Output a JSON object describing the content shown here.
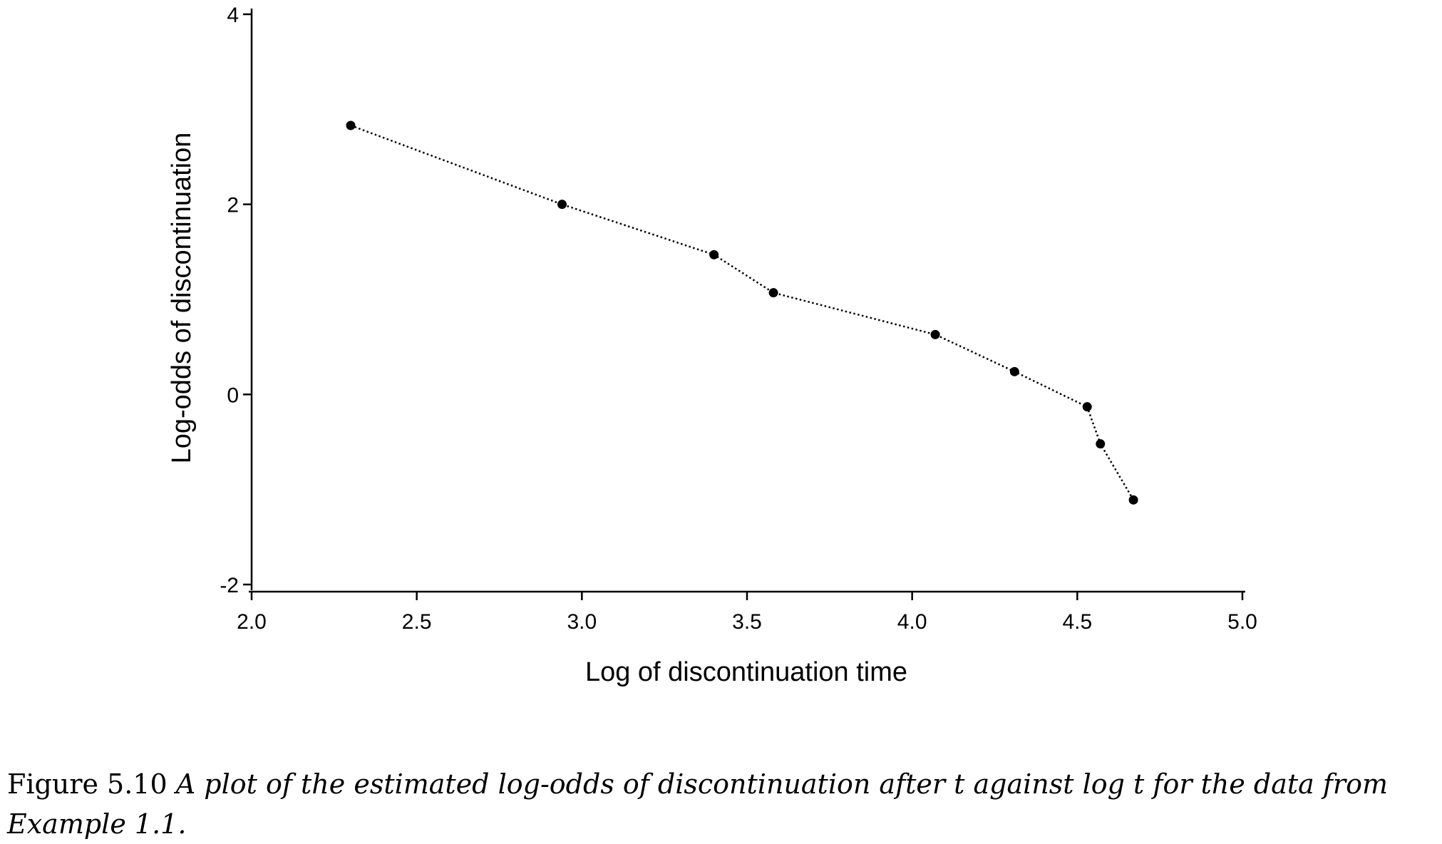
{
  "chart_data": {
    "type": "line",
    "title": "",
    "xlabel": "Log of discontinuation time",
    "ylabel": "Log-odds of discontinuation",
    "xlim": [
      2.0,
      5.0
    ],
    "ylim": [
      -2,
      4
    ],
    "xticks": [
      2.0,
      2.5,
      3.0,
      3.5,
      4.0,
      4.5,
      5.0
    ],
    "xtick_labels": [
      "2.0",
      "2.5",
      "3.0",
      "3.5",
      "4.0",
      "4.5",
      "5.0"
    ],
    "yticks": [
      -2,
      0,
      2,
      4
    ],
    "ytick_labels": [
      "-2",
      "0",
      "2",
      "4"
    ],
    "grid": false,
    "line_style": "dotted",
    "marker": "filled-circle",
    "series": [
      {
        "x": [
          2.3,
          2.94,
          3.4,
          3.58,
          4.07,
          4.31,
          4.53,
          4.57,
          4.67
        ],
        "y": [
          2.83,
          2.0,
          1.47,
          1.07,
          0.63,
          0.24,
          -0.13,
          -0.52,
          -1.11
        ]
      }
    ]
  },
  "caption": {
    "number": "Figure 5.10",
    "text": "A plot of the estimated log-odds of discontinuation after t against log t for the data from Example 1.1."
  },
  "colors": {
    "line": "#000000",
    "marker": "#000000",
    "axis": "#000000",
    "background": "#ffffff"
  }
}
